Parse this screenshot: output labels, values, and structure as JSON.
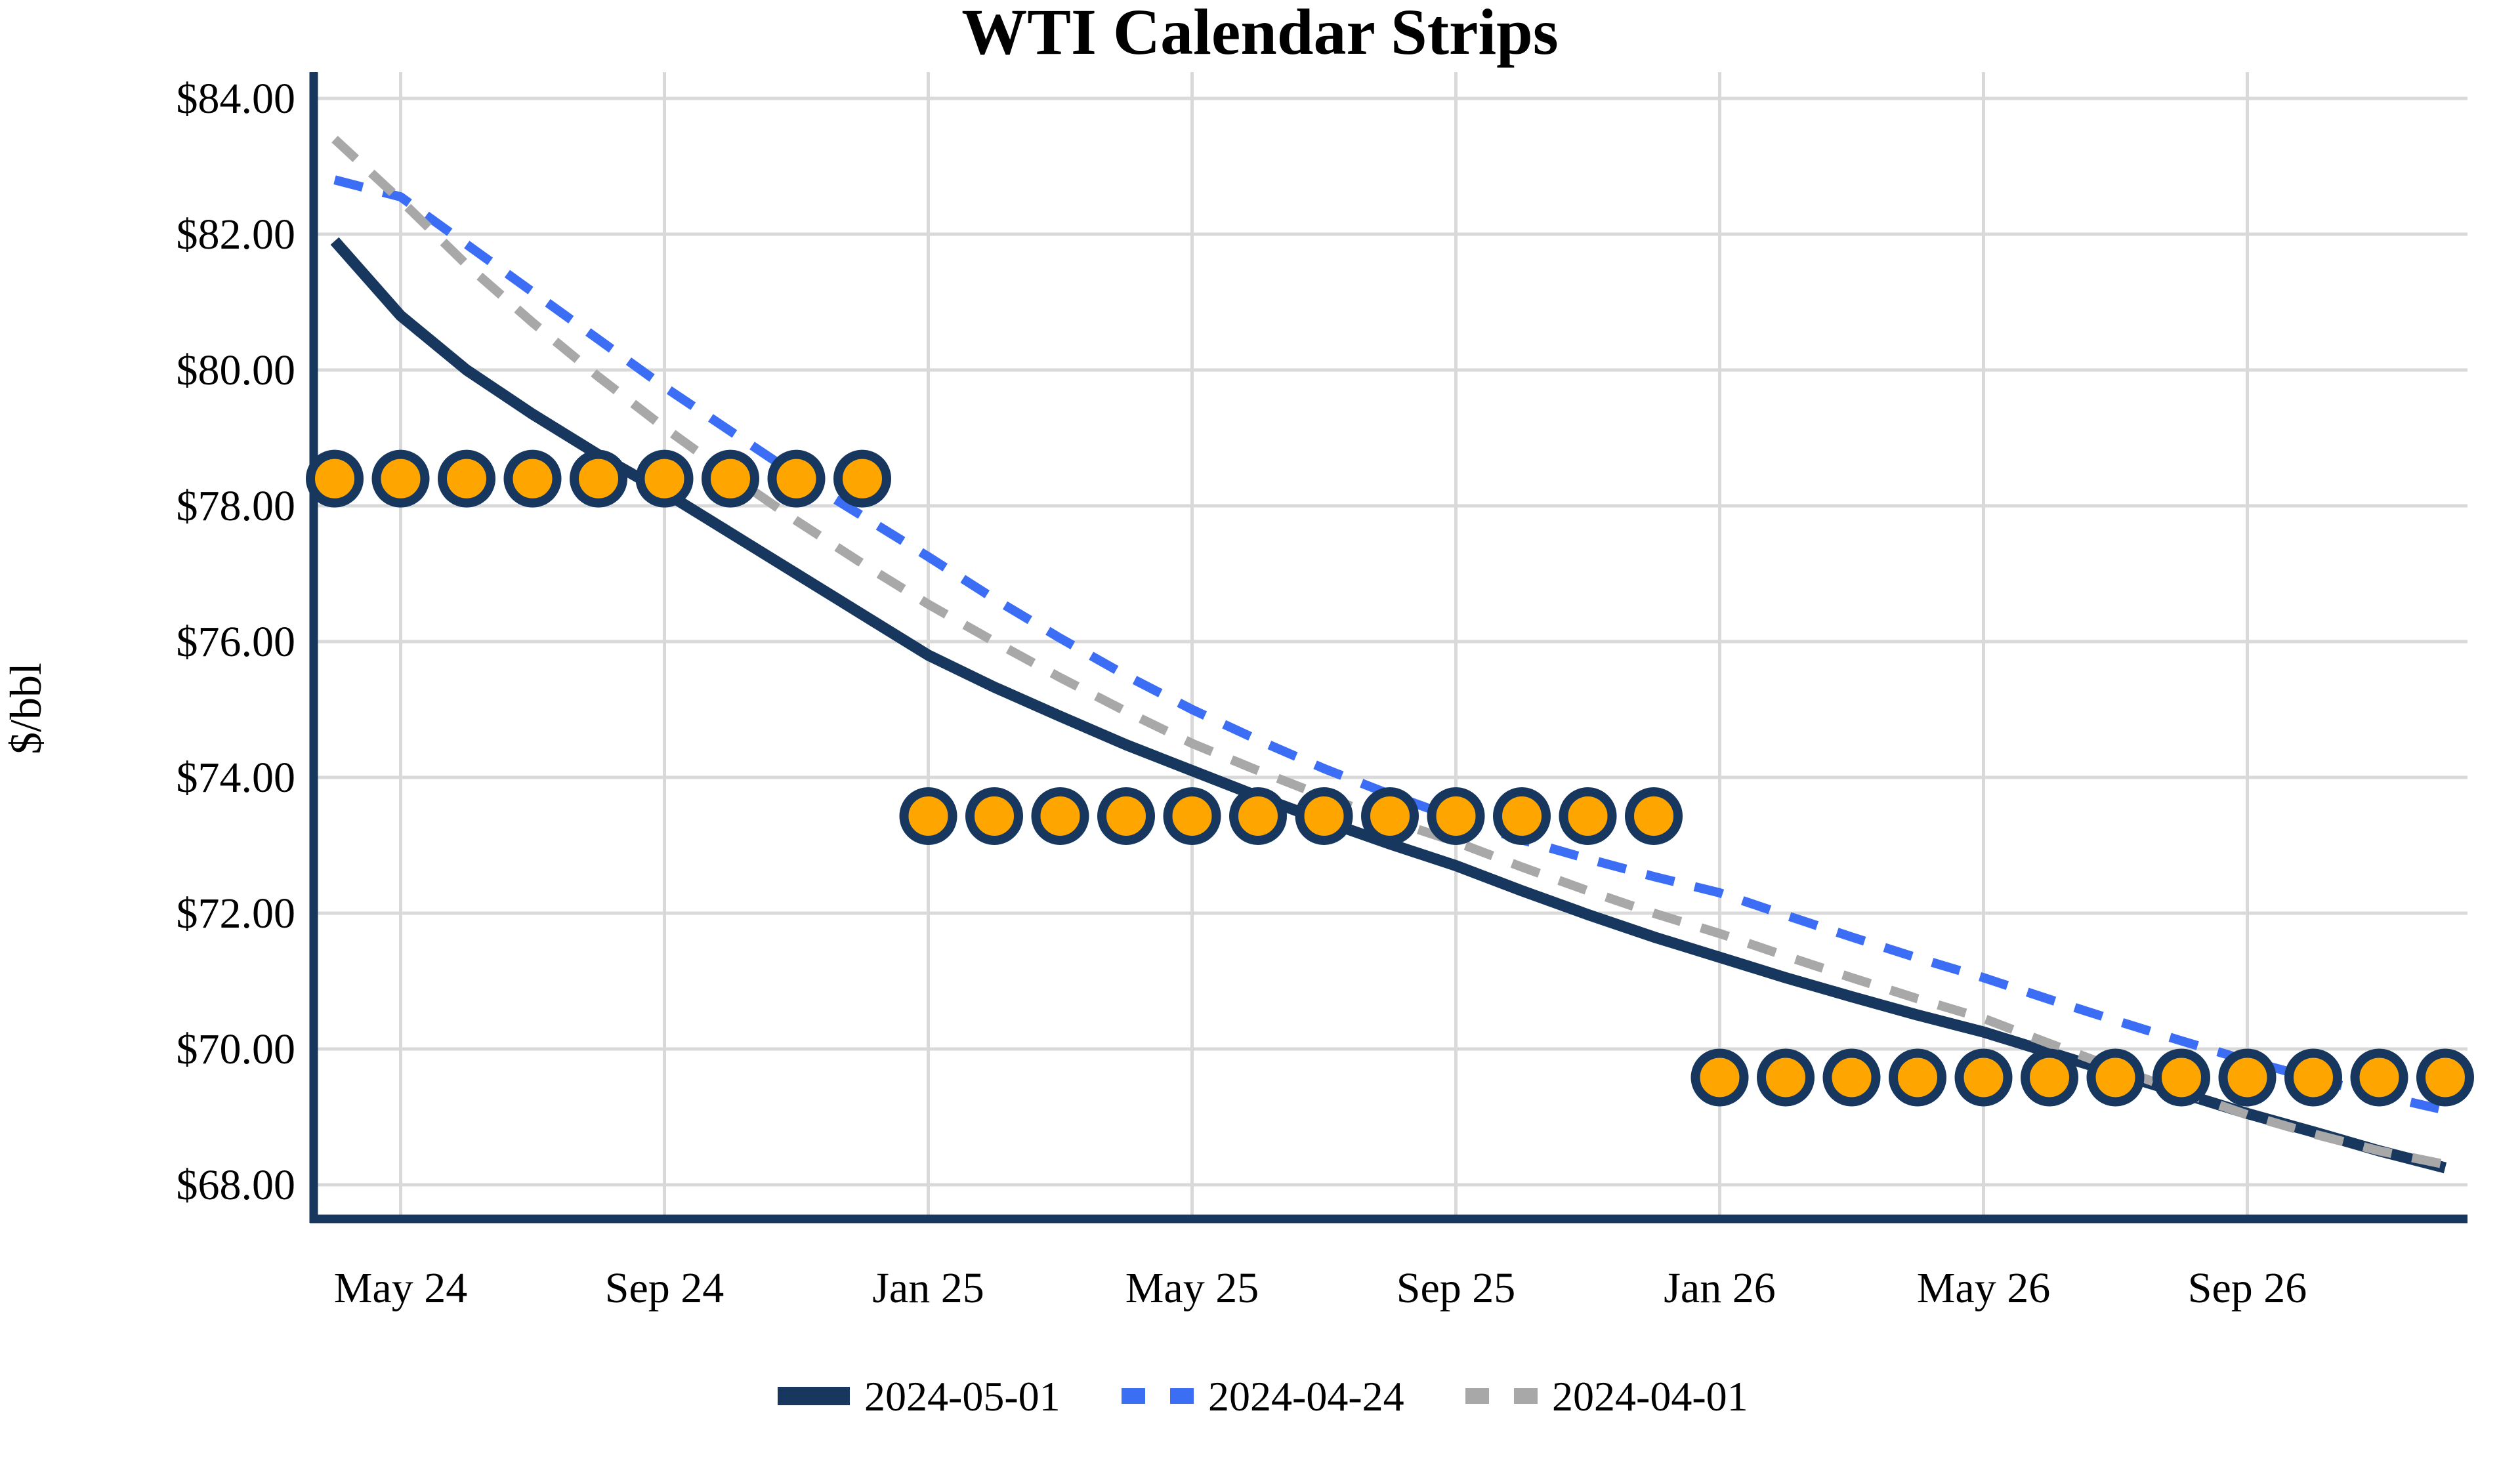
{
  "chart_data": {
    "type": "line",
    "title": "WTI Calendar Strips",
    "xlabel": "",
    "ylabel": "$/bbl",
    "ylim": [
      67.4,
      84.4
    ],
    "y_tick_step": 2,
    "grid": true,
    "legend_position": "bottom-center",
    "colors": {
      "navy": "#17375E",
      "blue": "#3B6EF5",
      "gray": "#A8A8A8",
      "orange": "#FFA500",
      "gridline": "#D9D9D9",
      "text": "#000000"
    },
    "categories": [
      "Apr-24",
      "May-24",
      "Jun-24",
      "Jul-24",
      "Aug-24",
      "Sep-24",
      "Oct-24",
      "Nov-24",
      "Dec-24",
      "Jan-25",
      "Feb-25",
      "Mar-25",
      "Apr-25",
      "May-25",
      "Jun-25",
      "Jul-25",
      "Aug-25",
      "Sep-25",
      "Oct-25",
      "Nov-25",
      "Dec-25",
      "Jan-26",
      "Feb-26",
      "Mar-26",
      "Apr-26",
      "May-26",
      "Jun-26",
      "Jul-26",
      "Aug-26",
      "Sep-26",
      "Oct-26",
      "Nov-26",
      "Dec-26"
    ],
    "x_ticks": [
      {
        "index": 1,
        "label": "May 24"
      },
      {
        "index": 5,
        "label": "Sep 24"
      },
      {
        "index": 9,
        "label": "Jan 25"
      },
      {
        "index": 13,
        "label": "May 25"
      },
      {
        "index": 17,
        "label": "Sep 25"
      },
      {
        "index": 21,
        "label": "Jan 26"
      },
      {
        "index": 25,
        "label": "May 26"
      },
      {
        "index": 29,
        "label": "Sep 26"
      }
    ],
    "y_ticks": [
      {
        "value": 84,
        "label": "$84.00"
      },
      {
        "value": 82,
        "label": "$82.00"
      },
      {
        "value": 80,
        "label": "$80.00"
      },
      {
        "value": 78,
        "label": "$78.00"
      },
      {
        "value": 76,
        "label": "$76.00"
      },
      {
        "value": 74,
        "label": "$74.00"
      },
      {
        "value": 72,
        "label": "$72.00"
      },
      {
        "value": 70,
        "label": "$70.00"
      },
      {
        "value": 68,
        "label": "$68.00"
      }
    ],
    "series": [
      {
        "name": "2024-05-01",
        "color": "#17375E",
        "style": "solid",
        "values": [
          81.9,
          80.8,
          80.0,
          79.35,
          78.75,
          78.2,
          77.6,
          77.0,
          76.4,
          75.8,
          75.33,
          74.9,
          74.48,
          74.1,
          73.72,
          73.36,
          73.02,
          72.7,
          72.33,
          71.98,
          71.65,
          71.35,
          71.05,
          70.77,
          70.5,
          70.25,
          69.95,
          69.65,
          69.35,
          69.05,
          68.78,
          68.5,
          68.25
        ]
      },
      {
        "name": "2024-04-24",
        "color": "#3B6EF5",
        "style": "dashed",
        "values": [
          82.8,
          82.55,
          81.85,
          81.15,
          80.45,
          79.75,
          79.1,
          78.45,
          77.85,
          77.25,
          76.63,
          76.05,
          75.5,
          75.0,
          74.55,
          74.13,
          73.75,
          73.4,
          73.08,
          72.8,
          72.54,
          72.3,
          71.97,
          71.65,
          71.34,
          71.05,
          70.73,
          70.42,
          70.12,
          69.83,
          69.57,
          69.32,
          69.1
        ]
      },
      {
        "name": "2024-04-01",
        "color": "#A8A8A8",
        "style": "dashed",
        "values": [
          83.4,
          82.5,
          81.55,
          80.7,
          79.9,
          79.15,
          78.45,
          77.78,
          77.15,
          76.55,
          76.0,
          75.47,
          74.97,
          74.5,
          74.1,
          73.72,
          73.37,
          73.05,
          72.68,
          72.33,
          72.0,
          71.7,
          71.37,
          71.05,
          70.74,
          70.45,
          70.08,
          69.72,
          69.37,
          69.03,
          68.75,
          68.5,
          68.3
        ]
      }
    ],
    "calendar_strips": [
      {
        "name": "cal-2024-strip",
        "value": 78.4,
        "start_index": 0,
        "count": 9,
        "start": "Apr-24",
        "end": "Dec-24"
      },
      {
        "name": "cal-2025-strip",
        "value": 73.43,
        "start_index": 9,
        "count": 12,
        "start": "Jan-25",
        "end": "Dec-25"
      },
      {
        "name": "cal-2026-strip",
        "value": 69.58,
        "start_index": 21,
        "count": 12,
        "start": "Jan-26",
        "end": "Dec-26"
      }
    ],
    "strip_marker": {
      "fill": "#FFA500",
      "stroke": "#17375E"
    }
  }
}
